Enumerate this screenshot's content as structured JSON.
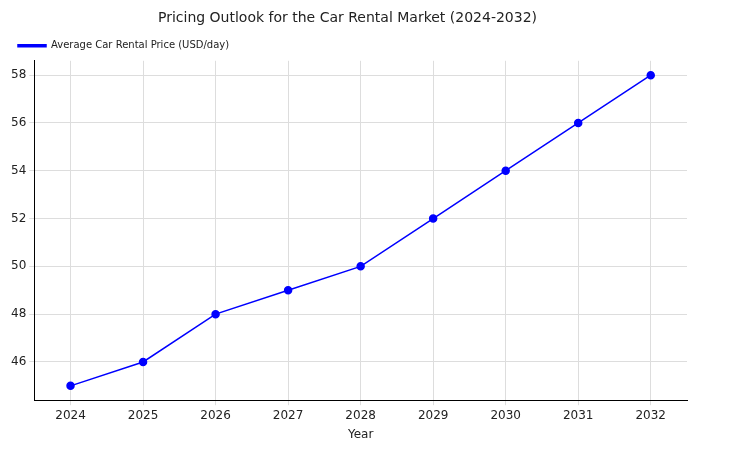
{
  "chart_data": {
    "type": "line",
    "title": "Pricing Outlook for the Car Rental Market (2024-2032)",
    "x_label": "Year",
    "categories": [
      "2024",
      "2025",
      "2026",
      "2027",
      "2028",
      "2029",
      "2030",
      "2031",
      "2032"
    ],
    "series": [
      {
        "name": "Average Car Rental Price (USD/day)",
        "color": "#0000ff",
        "marker": "circle",
        "line_style": "solid",
        "values": [
          45,
          46,
          48,
          49,
          50,
          52,
          54,
          56,
          58
        ]
      }
    ],
    "ylim": [
      44.4,
      58.6
    ],
    "yticks": [
      46,
      48,
      50,
      52,
      54,
      56,
      58
    ],
    "grid": true,
    "legend": "top-left"
  }
}
